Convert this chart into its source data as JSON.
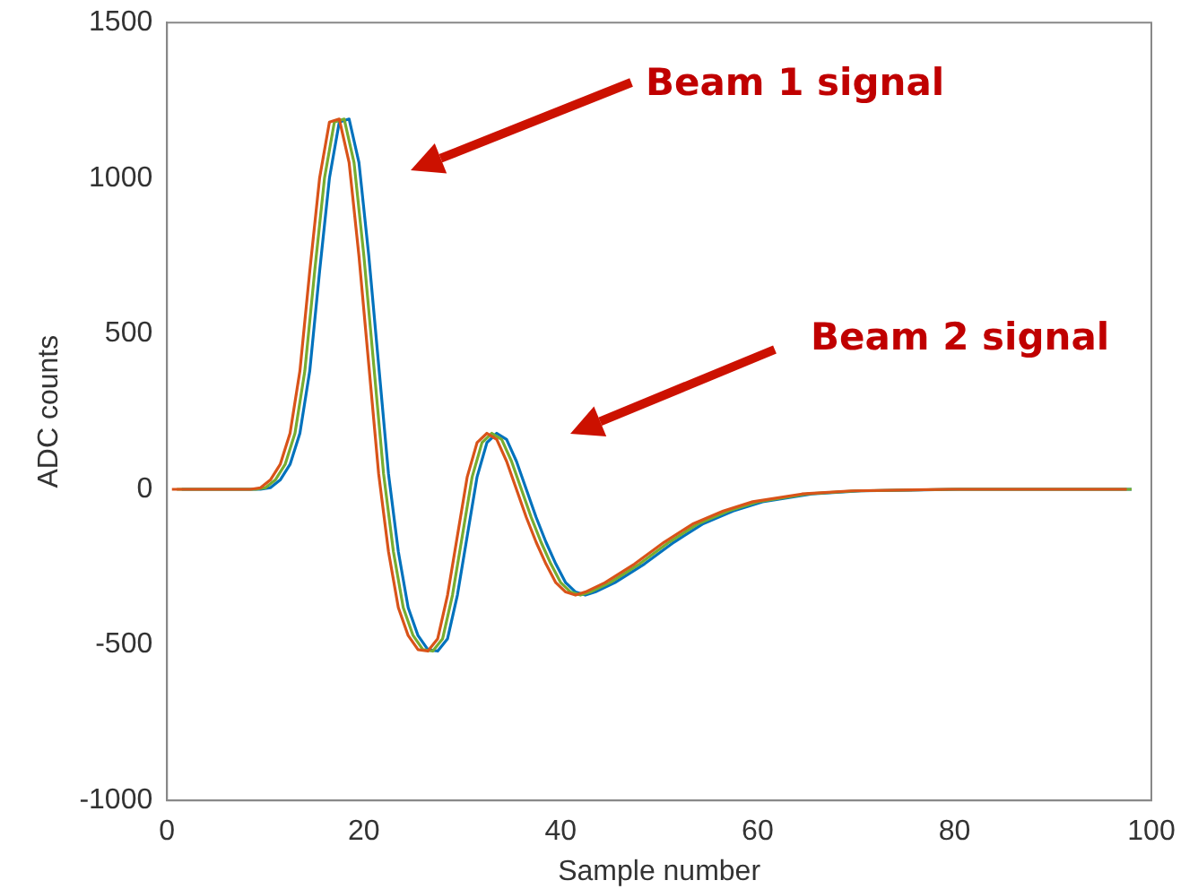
{
  "chart_data": {
    "type": "line",
    "xlabel": "Sample number",
    "ylabel": "ADC counts",
    "xlim": [
      0,
      100
    ],
    "ylim": [
      -1000,
      1500
    ],
    "xticks": [
      0,
      20,
      40,
      60,
      80,
      100
    ],
    "yticks": [
      -1000,
      -500,
      0,
      500,
      1000,
      1500
    ],
    "grid": false,
    "legend": false,
    "marker": "none",
    "line_style": "solid",
    "annotations": [
      "Beam 1 signal",
      "Beam 2 signal"
    ],
    "series": [
      {
        "color": "#d95319",
        "x": [
          0.5,
          8.5,
          9.5,
          10.5,
          11.5,
          12.5,
          13.5,
          14.5,
          15.5,
          16.5,
          17.5,
          18.5,
          19.5,
          20.5,
          21.5,
          22.5,
          23.5,
          24.5,
          25.5,
          26.5,
          27.5,
          28.5,
          29.5,
          30.5,
          31.5,
          32.5,
          33.5,
          34.5,
          35.5,
          36.5,
          37.5,
          38.5,
          39.5,
          40.5,
          41.5,
          42.5,
          44.5,
          47.5,
          50.5,
          53.5,
          56.5,
          59.5,
          64.5,
          69.5,
          79.5,
          97.5
        ],
        "values": [
          0,
          0,
          5,
          30,
          80,
          180,
          380,
          700,
          1000,
          1180,
          1190,
          1050,
          750,
          400,
          50,
          -200,
          -380,
          -470,
          -515,
          -520,
          -480,
          -340,
          -150,
          40,
          150,
          180,
          160,
          90,
          0,
          -90,
          -170,
          -240,
          -300,
          -330,
          -340,
          -330,
          -300,
          -240,
          -170,
          -110,
          -70,
          -40,
          -15,
          -5,
          0,
          0
        ]
      },
      {
        "color": "#77ac30",
        "x": [
          1,
          9,
          10,
          11,
          12,
          13,
          14,
          15,
          16,
          17,
          18,
          19,
          20,
          21,
          22,
          23,
          24,
          25,
          26,
          27,
          28,
          29,
          30,
          31,
          32,
          33,
          34,
          35,
          36,
          37,
          38,
          39,
          40,
          41,
          42,
          43,
          45,
          48,
          51,
          54,
          57,
          60,
          65,
          70,
          80,
          98
        ],
        "values": [
          0,
          0,
          5,
          30,
          80,
          180,
          380,
          700,
          1000,
          1180,
          1190,
          1050,
          750,
          400,
          50,
          -200,
          -380,
          -470,
          -515,
          -520,
          -480,
          -340,
          -150,
          40,
          150,
          180,
          160,
          90,
          0,
          -90,
          -170,
          -240,
          -300,
          -330,
          -340,
          -330,
          -300,
          -240,
          -170,
          -110,
          -70,
          -40,
          -15,
          -5,
          0,
          0
        ]
      },
      {
        "color": "#0072bd",
        "x": [
          1.5,
          9.5,
          10.5,
          11.5,
          12.5,
          13.5,
          14.5,
          15.5,
          16.5,
          17.5,
          18.5,
          19.5,
          20.5,
          21.5,
          22.5,
          23.5,
          24.5,
          25.5,
          26.5,
          27.5,
          28.5,
          29.5,
          30.5,
          31.5,
          32.5,
          33.5,
          34.5,
          35.5,
          36.5,
          37.5,
          38.5,
          39.5,
          40.5,
          41.5,
          42.5,
          43.5,
          45.5,
          48.5,
          51.5,
          54.5,
          57.5,
          60.5,
          65.5,
          70.5,
          80.5,
          98
        ],
        "values": [
          0,
          0,
          5,
          30,
          80,
          180,
          380,
          700,
          1000,
          1180,
          1190,
          1050,
          750,
          400,
          50,
          -200,
          -380,
          -470,
          -515,
          -520,
          -480,
          -340,
          -150,
          40,
          150,
          180,
          160,
          90,
          0,
          -90,
          -170,
          -240,
          -300,
          -330,
          -340,
          -330,
          -300,
          -240,
          -170,
          -110,
          -70,
          -40,
          -15,
          -5,
          0,
          0
        ]
      }
    ]
  }
}
